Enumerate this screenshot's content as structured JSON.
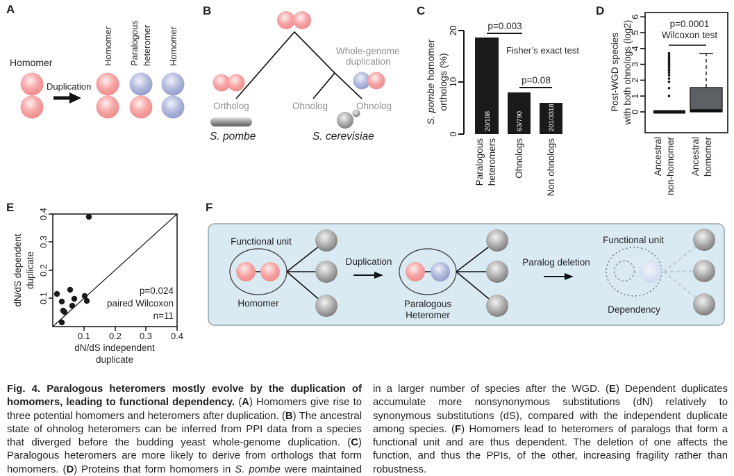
{
  "panels": {
    "a": {
      "label": "A",
      "homomer": "Homomer",
      "duplication": "Duplication",
      "right1": "Homomer",
      "right2a": "Paralogous",
      "right2b": "heteromer",
      "right3": "Homomer"
    },
    "b": {
      "label": "B",
      "ortholog": "Ortholog",
      "ohnolog_left": "Ohnolog",
      "ohnolog_right": "Ohnolog",
      "wgd_line1": "Whole-genome",
      "wgd_line2": "duplication",
      "species_left": "S. pombe",
      "species_right": "S. cerevisiae"
    },
    "c": {
      "label": "C",
      "ytitle_line1_segments": [
        {
          "t": "S. pombe",
          "s": "i"
        },
        {
          "t": " homomer",
          "s": ""
        }
      ],
      "ytitle_line2": "orthologs (%)",
      "yticks": [
        "0",
        "10",
        "20"
      ],
      "p_left": "p=0.003",
      "p_right": "p=0.08",
      "test": "Fisher’s exact test",
      "count1": "20/108",
      "count2": "63/790",
      "count3": "201/3318",
      "cat1_line1": "Paralogous",
      "cat1_line2": "heteromers",
      "cat2": "Ohnologs",
      "cat3": "Non ohnologs"
    },
    "d": {
      "label": "D",
      "ytitle_line1": "Post-WGD species",
      "ytitle_line2": "with both ohnologs (log2)",
      "yticks": [
        "0",
        "1",
        "2",
        "3",
        "4",
        "5",
        "6"
      ],
      "p": "p=0.0001",
      "test": "Wilcoxon test",
      "cat1_line1": "Ancestral",
      "cat1_line2": "non-homomer",
      "cat2_line1": "Ancestral",
      "cat2_line2": "homomer"
    },
    "e": {
      "label": "E",
      "ytitle_line1": "dN/dS dependent",
      "ytitle_line2": "duplicate",
      "xtitle_line1": "dN/dS independent",
      "xtitle_line2": "duplicate",
      "xticks": [
        "0.1",
        "0.2",
        "0.3",
        "0.4"
      ],
      "yticks": [
        "0.1",
        "0.2",
        "0.3",
        "0.4"
      ],
      "p": "p=0.024",
      "test": "paired Wilcoxon",
      "n": "n=11"
    },
    "f": {
      "label": "F",
      "functional_unit_left": "Functional unit",
      "homomer": "Homomer",
      "duplication": "Duplication",
      "paralogous": "Paralogous",
      "heteromer": "Heteromer",
      "paralog_deletion": "Paralog deletion",
      "functional_unit_right": "Functional unit",
      "dependency": "Dependency"
    }
  },
  "caption": {
    "col1": [
      {
        "t": "Fig. 4. Paralogous heteromers mostly evolve by the duplication of homomers, leading to functional dependency. ",
        "s": "b"
      },
      {
        "t": "(",
        "s": ""
      },
      {
        "t": "A",
        "s": "b"
      },
      {
        "t": ") Homomers give rise to three potential homomers and heteromers after duplication. (",
        "s": ""
      },
      {
        "t": "B",
        "s": "b"
      },
      {
        "t": ") The ancestral state of ohnolog heteromers can be inferred from PPI data from a species that diverged before the budding yeast whole-genome duplication. (",
        "s": ""
      },
      {
        "t": "C",
        "s": "b"
      },
      {
        "t": ") Paralogous heteromers are more likely to derive from orthologs that form homomers. (",
        "s": ""
      },
      {
        "t": "D",
        "s": "b"
      },
      {
        "t": ") Proteins that form homomers in ",
        "s": ""
      },
      {
        "t": "S. pombe",
        "s": "i"
      },
      {
        "t": " were maintained as a pair",
        "s": ""
      }
    ],
    "col2": [
      {
        "t": "in a larger number of species after the WGD. (",
        "s": ""
      },
      {
        "t": "E",
        "s": "b"
      },
      {
        "t": ") Dependent duplicates accumulate more nonsynonymous substitutions (dN) relatively to synonymous substitutions (dS), compared with the independent duplicate among species. (",
        "s": ""
      },
      {
        "t": "F",
        "s": "b"
      },
      {
        "t": ") Homomers lead to heteromers of paralogs that form a functional unit and are thus dependent. The deletion of one affects the function, and thus the PPIs, of the other, increasing fragility rather than robustness.",
        "s": ""
      }
    ]
  },
  "colors": {
    "red_subunit": "#ee8585",
    "blue_subunit": "#8992c5",
    "gray_subunit": "#8d8d8d",
    "bar_fill": "#1a1a1a",
    "box_fill": "#5d6165",
    "panel_f_background": "#daeaf3",
    "gray_label": "#8e9194",
    "text": "#231f20"
  },
  "chart_data": [
    {
      "panel": "C",
      "type": "bar",
      "title": "",
      "xlabel": "",
      "ylabel": "S. pombe homomer orthologs (%)",
      "ylim": [
        0,
        20
      ],
      "yticks": [
        0,
        10,
        20
      ],
      "categories": [
        "Paralogous heteromers",
        "Ohnologs",
        "Non ohnologs"
      ],
      "values": [
        18.5,
        8.0,
        6.1
      ],
      "bar_counts": [
        "20/108",
        "63/790",
        "201/3318"
      ],
      "bar_color": "#1a1a1a",
      "annotations": [
        {
          "text": "p=0.003",
          "between": [
            "Paralogous heteromers",
            "Ohnologs"
          ]
        },
        {
          "text": "p=0.08",
          "between": [
            "Ohnologs",
            "Non ohnologs"
          ]
        },
        {
          "text": "Fisher’s exact test"
        }
      ],
      "grid": false
    },
    {
      "panel": "D",
      "type": "boxplot",
      "ylabel": "Post-WGD species with both ohnologs (log2)",
      "ylim": [
        0,
        6
      ],
      "yticks": [
        0,
        1,
        2,
        3,
        4,
        5,
        6
      ],
      "categories": [
        "Ancestral non-homomer",
        "Ancestral homomer"
      ],
      "groups": [
        {
          "name": "Ancestral non-homomer",
          "q1": 0,
          "median": 0,
          "q3": 0,
          "whisker_low": 0,
          "whisker_high": 0,
          "outliers": [
            1.0,
            1.5,
            1.9,
            2.1,
            2.3,
            2.45,
            2.6,
            2.7,
            2.8,
            2.9,
            3.0,
            3.1,
            3.2,
            3.3,
            3.4,
            3.5,
            3.6,
            3.7
          ]
        },
        {
          "name": "Ancestral homomer",
          "q1": 0,
          "median": 0.05,
          "q3": 1.55,
          "whisker_low": 0,
          "whisker_high": 3.65,
          "outliers": []
        }
      ],
      "annotation": "p=0.0001 Wilcoxon test",
      "grid": false
    },
    {
      "panel": "E",
      "type": "scatter",
      "xlabel": "dN/dS independent duplicate",
      "ylabel": "dN/dS dependent duplicate",
      "xlim": [
        0,
        0.4
      ],
      "ylim": [
        0,
        0.4
      ],
      "diagonal": true,
      "points": [
        [
          0.116,
          0.39
        ],
        [
          0.013,
          0.116
        ],
        [
          0.056,
          0.131
        ],
        [
          0.029,
          0.088
        ],
        [
          0.069,
          0.1
        ],
        [
          0.103,
          0.109
        ],
        [
          0.11,
          0.092
        ],
        [
          0.034,
          0.058
        ],
        [
          0.039,
          0.053
        ],
        [
          0.063,
          0.074
        ],
        [
          0.029,
          0.016
        ]
      ],
      "annotation": "p=0.024 paired Wilcoxon n=11",
      "grid": false
    }
  ]
}
